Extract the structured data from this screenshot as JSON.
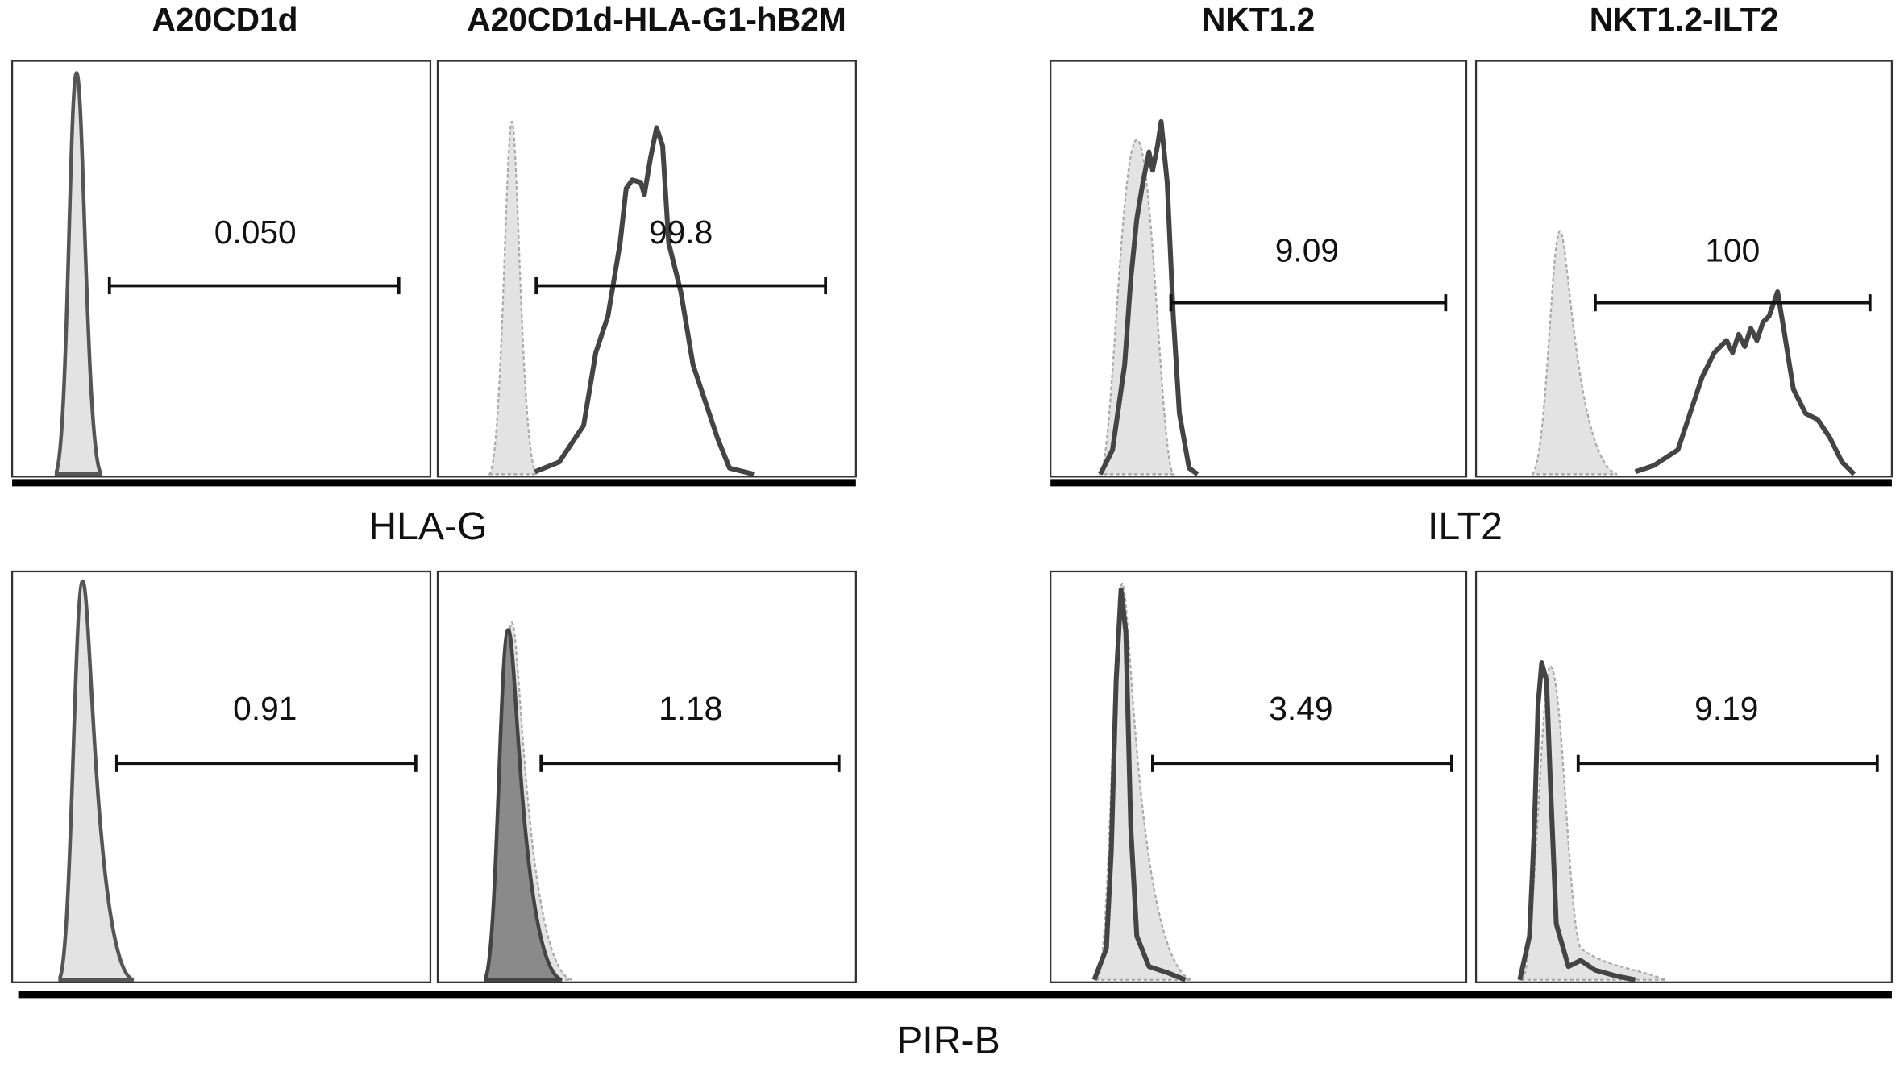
{
  "columns": [
    "A20CD1d",
    "A20CD1d-HLA-G1-hB2M",
    "NKT1.2",
    "NKT1.2-ILT2"
  ],
  "row_1": {
    "gates": [
      "0.050",
      "99.8",
      "9.09",
      "100"
    ],
    "axis_labels": [
      "HLA-G",
      "ILT2"
    ]
  },
  "row_2": {
    "gates": [
      "0.91",
      "1.18",
      "3.49",
      "9.19"
    ],
    "axis_label": "PIR-B"
  }
}
